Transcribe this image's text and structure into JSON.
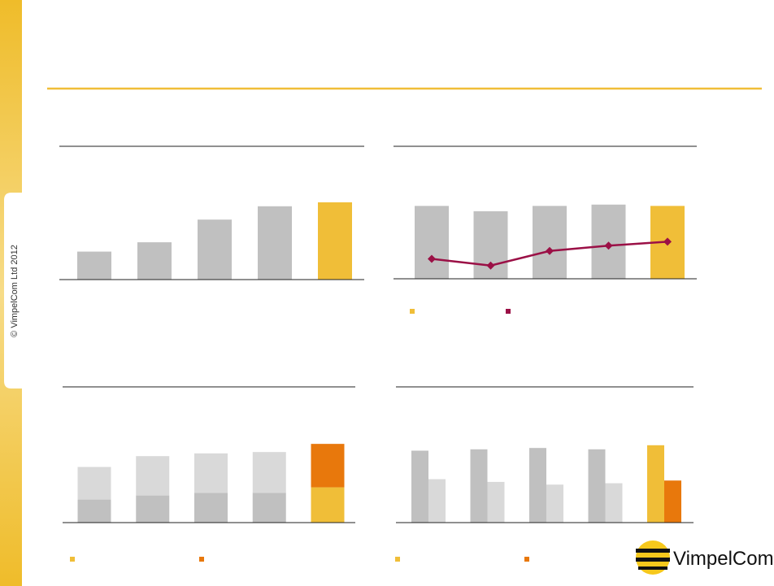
{
  "sidebar": {
    "copyright": "© VimpelCom Ltd 2012"
  },
  "logo": {
    "text": "VimpelCom"
  },
  "chart_data": [
    {
      "type": "bar",
      "ylim": [
        0,
        100
      ],
      "legend": false,
      "series": [
        {
          "color": "#c0c0c0",
          "colors": [
            "#c0c0c0",
            "#c0c0c0",
            "#c0c0c0",
            "#c0c0c0",
            "#f0be38"
          ],
          "values": [
            21,
            28,
            45,
            55,
            58
          ]
        }
      ]
    },
    {
      "type": "bar_line",
      "ylim": [
        0,
        100
      ],
      "legend": true,
      "series": [
        {
          "color": "#c0c0c0",
          "colors": [
            "#c0c0c0",
            "#c0c0c0",
            "#c0c0c0",
            "#c0c0c0",
            "#f0be38"
          ],
          "values": [
            55,
            51,
            55,
            56,
            55
          ]
        },
        {
          "color": "#9b1046",
          "line": true,
          "values": [
            15,
            10,
            21,
            25,
            28
          ]
        }
      ]
    },
    {
      "type": "stacked_bar",
      "ylim": [
        0,
        100
      ],
      "legend": true,
      "series": [
        {
          "color": "#c0c0c0",
          "colors": [
            "#c0c0c0",
            "#c0c0c0",
            "#c0c0c0",
            "#c0c0c0",
            "#f0be38"
          ],
          "values": [
            17,
            20,
            22,
            22,
            26
          ]
        },
        {
          "color": "#d9d9d9",
          "colors": [
            "#d9d9d9",
            "#d9d9d9",
            "#d9d9d9",
            "#d9d9d9",
            "#e8780c"
          ],
          "values": [
            24,
            29,
            29,
            30,
            32
          ]
        }
      ]
    },
    {
      "type": "grouped_bar",
      "ylim": [
        0,
        100
      ],
      "legend": true,
      "series": [
        {
          "color": "#c0c0c0",
          "colors": [
            "#c0c0c0",
            "#c0c0c0",
            "#c0c0c0",
            "#c0c0c0",
            "#f0be38"
          ],
          "values": [
            53,
            54,
            55,
            54,
            57
          ]
        },
        {
          "color": "#d9d9d9",
          "colors": [
            "#d9d9d9",
            "#d9d9d9",
            "#d9d9d9",
            "#d9d9d9",
            "#e8780c"
          ],
          "values": [
            32,
            30,
            28,
            29,
            31
          ]
        }
      ]
    }
  ]
}
